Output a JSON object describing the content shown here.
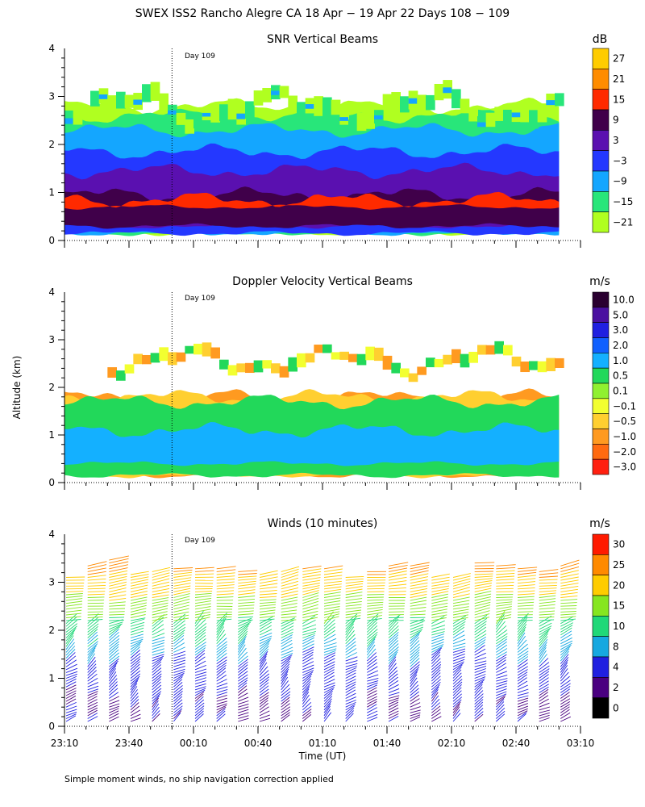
{
  "page": {
    "title": "SWEX ISS2 Rancho Alegre CA  18 Apr − 19 Apr 22 Days 108 − 109",
    "footnote": "Simple moment winds, no ship navigation correction applied",
    "y_axis_label": "Altitude (km)",
    "x_axis_label": "Time (UT)"
  },
  "chart_data": [
    {
      "type": "heatmap",
      "title": "SNR Vertical Beams",
      "ylim": [
        0,
        4
      ],
      "yticks": [
        "0",
        "1",
        "2",
        "3",
        "4"
      ],
      "marker": {
        "time": "00:00",
        "label": "Day 109"
      },
      "colorbar": {
        "unit": "dB",
        "labels": [
          "27",
          "21",
          "15",
          "9",
          "3",
          "−3",
          "−9",
          "−15",
          "−21"
        ],
        "colors": [
          "#ffcc00",
          "#ff8c00",
          "#ff2a00",
          "#40004a",
          "#5a10b0",
          "#2438ff",
          "#14a6ff",
          "#28e67a",
          "#b0ff20"
        ]
      },
      "layers": [
        {
          "level": "−21",
          "color": "#b0ff20",
          "alt_range": [
            0.15,
            2.8
          ]
        },
        {
          "level": "−15",
          "color": "#28e67a",
          "alt_range": [
            0.15,
            2.6
          ]
        },
        {
          "level": "−9",
          "color": "#14a6ff",
          "alt_range": [
            0.15,
            2.3
          ]
        },
        {
          "level": "−3",
          "color": "#2438ff",
          "alt_range": [
            0.15,
            1.85
          ]
        },
        {
          "level": "3",
          "color": "#5a10b0",
          "alt_range": [
            0.3,
            1.45
          ]
        },
        {
          "level": "9",
          "color": "#40004a",
          "alt_range": [
            0.3,
            0.95
          ]
        },
        {
          "level": "15",
          "color": "#ff2a00",
          "alt_range": [
            0.7,
            0.85
          ]
        }
      ]
    },
    {
      "type": "heatmap",
      "title": "Doppler Velocity Vertical Beams",
      "ylim": [
        0,
        4
      ],
      "yticks": [
        "0",
        "1",
        "2",
        "3",
        "4"
      ],
      "marker": {
        "time": "00:00",
        "label": "Day 109"
      },
      "colorbar": {
        "unit": "m/s",
        "labels": [
          "10.0",
          "5.0",
          "3.0",
          "2.0",
          "1.0",
          "0.5",
          "0.1",
          "−0.1",
          "−0.5",
          "−1.0",
          "−2.0",
          "−3.0"
        ],
        "colors": [
          "#2a0030",
          "#4a10a0",
          "#2020e0",
          "#1060ff",
          "#14b0ff",
          "#22d85a",
          "#90f030",
          "#f2ff30",
          "#ffcf30",
          "#ff9a20",
          "#ff6a10",
          "#ff2010"
        ]
      },
      "layers": [
        {
          "level": "−1.0",
          "color": "#ff9a20",
          "alt_range": [
            0.15,
            1.8
          ]
        },
        {
          "level": "−0.5",
          "color": "#ffcf30",
          "alt_range": [
            0.15,
            1.8
          ]
        },
        {
          "level": "0.5",
          "color": "#22d85a",
          "alt_range": [
            0.15,
            1.7
          ]
        },
        {
          "level": "1.0",
          "color": "#14b0ff",
          "alt_range": [
            0.4,
            1.1
          ]
        }
      ]
    },
    {
      "type": "heatmap",
      "title": "Winds (10 minutes)",
      "ylim": [
        0,
        4
      ],
      "yticks": [
        "0",
        "1",
        "2",
        "3",
        "4"
      ],
      "marker": {
        "time": "00:00",
        "label": "Day 109"
      },
      "colorbar": {
        "unit": "m/s",
        "labels": [
          "30",
          "25",
          "20",
          "15",
          "10",
          "8",
          "4",
          "2",
          "0"
        ],
        "colors": [
          "#ff1a00",
          "#ff8a00",
          "#ffcc00",
          "#86e620",
          "#20d878",
          "#16a8e0",
          "#2020e0",
          "#4a0080",
          "#000000"
        ]
      },
      "x_ticks": [
        "23:10",
        "23:40",
        "00:10",
        "00:40",
        "01:10",
        "01:40",
        "02:10",
        "02:40",
        "03:10"
      ],
      "profiles_every_minutes": 10,
      "speed_by_altitude": [
        {
          "alt": 0.1,
          "speed": 4
        },
        {
          "alt": 0.5,
          "speed": 4
        },
        {
          "alt": 1.0,
          "speed": 6
        },
        {
          "alt": 1.4,
          "speed": 8
        },
        {
          "alt": 1.8,
          "speed": 10
        },
        {
          "alt": 2.2,
          "speed": 15
        },
        {
          "alt": 2.7,
          "speed": 20
        },
        {
          "alt": 3.2,
          "speed": 25
        },
        {
          "alt": 3.5,
          "speed": 30
        }
      ]
    }
  ]
}
